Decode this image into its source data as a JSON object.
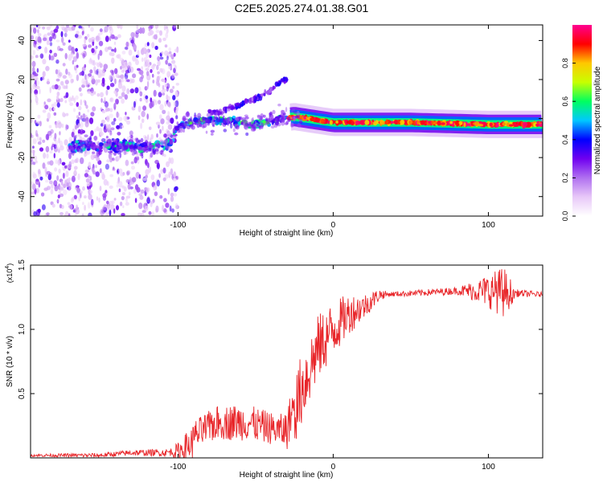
{
  "title": "C2E5.2025.274.01.38.G01",
  "chart_data": [
    {
      "type": "heatmap",
      "name": "spectrogram",
      "xlabel": "Height of straight line (km)",
      "ylabel": "Frequency (Hz)",
      "xlim": [
        -195,
        135
      ],
      "ylim": [
        -50,
        48
      ],
      "xticks": [
        -100,
        0,
        100
      ],
      "xtick_labels": [
        "-100",
        "0",
        "100"
      ],
      "yticks": [
        40,
        20,
        0,
        -20,
        -40
      ],
      "ytick_labels": [
        "40",
        "20",
        "0",
        "-20",
        "-40"
      ],
      "ridge": [
        {
          "x": -160,
          "f": -14
        },
        {
          "x": -140,
          "f": -14
        },
        {
          "x": -120,
          "f": -15
        },
        {
          "x": -105,
          "f": -12
        },
        {
          "x": -100,
          "f": -4
        },
        {
          "x": -90,
          "f": -1
        },
        {
          "x": -70,
          "f": -1
        },
        {
          "x": -50,
          "f": -3
        },
        {
          "x": -35,
          "f": 0
        },
        {
          "x": -25,
          "f": 1
        },
        {
          "x": 0,
          "f": -2
        },
        {
          "x": 50,
          "f": -2
        },
        {
          "x": 100,
          "f": -3
        },
        {
          "x": 135,
          "f": -3
        }
      ],
      "upper_branch": [
        {
          "x": -75,
          "f": 3
        },
        {
          "x": -60,
          "f": 7
        },
        {
          "x": -45,
          "f": 12
        },
        {
          "x": -32,
          "f": 20
        }
      ],
      "noise_region_end_km": -100,
      "colorbar": {
        "label": "Normalized spectral amplitude",
        "ticks": [
          0.0,
          0.2,
          0.4,
          0.6,
          0.8
        ],
        "tick_labels": [
          "0.0",
          "0.2",
          "0.4",
          "0.6",
          "0.8"
        ],
        "range": [
          0,
          1
        ],
        "colors": [
          "#ffffff",
          "#e8c8f8",
          "#b070f0",
          "#7000f0",
          "#0000ff",
          "#00c8ff",
          "#00ff60",
          "#c8ff00",
          "#ffc800",
          "#ff0000",
          "#ff0090"
        ]
      }
    },
    {
      "type": "line",
      "name": "snr",
      "xlabel": "Height of straight line (km)",
      "ylabel": "SNR (10 * v/v)",
      "y_multiplier": "(x10",
      "y_multiplier_exp": "4",
      "y_multiplier_close": ")",
      "xlim": [
        -195,
        135
      ],
      "ylim": [
        0,
        1.5
      ],
      "xticks": [
        -100,
        0,
        100
      ],
      "xtick_labels": [
        "-100",
        "0",
        "100"
      ],
      "yticks": [
        0.5,
        1.0,
        1.5
      ],
      "ytick_labels": [
        "0.5",
        "1.0",
        "1.5"
      ],
      "color": "#e8262a",
      "trend": [
        {
          "x": -195,
          "y": 0.02
        },
        {
          "x": -150,
          "y": 0.02
        },
        {
          "x": -130,
          "y": 0.04
        },
        {
          "x": -110,
          "y": 0.04
        },
        {
          "x": -100,
          "y": 0.05
        },
        {
          "x": -90,
          "y": 0.12
        },
        {
          "x": -75,
          "y": 0.22
        },
        {
          "x": -55,
          "y": 0.22
        },
        {
          "x": -40,
          "y": 0.18
        },
        {
          "x": -30,
          "y": 0.15
        },
        {
          "x": -20,
          "y": 0.55
        },
        {
          "x": -10,
          "y": 0.85
        },
        {
          "x": 0,
          "y": 1.0
        },
        {
          "x": 10,
          "y": 1.12
        },
        {
          "x": 20,
          "y": 1.18
        },
        {
          "x": 30,
          "y": 1.27
        },
        {
          "x": 50,
          "y": 1.28
        },
        {
          "x": 80,
          "y": 1.3
        },
        {
          "x": 100,
          "y": 1.3
        },
        {
          "x": 120,
          "y": 1.28
        },
        {
          "x": 135,
          "y": 1.27
        }
      ],
      "noise_amplitude": [
        {
          "x": -195,
          "a": 0.01
        },
        {
          "x": -140,
          "a": 0.02
        },
        {
          "x": -105,
          "a": 0.03
        },
        {
          "x": -90,
          "a": 0.15
        },
        {
          "x": -60,
          "a": 0.18
        },
        {
          "x": -35,
          "a": 0.15
        },
        {
          "x": -20,
          "a": 0.3
        },
        {
          "x": 0,
          "a": 0.22
        },
        {
          "x": 20,
          "a": 0.1
        },
        {
          "x": 35,
          "a": 0.02
        },
        {
          "x": 80,
          "a": 0.03
        },
        {
          "x": 95,
          "a": 0.1
        },
        {
          "x": 110,
          "a": 0.2
        },
        {
          "x": 118,
          "a": 0.03
        },
        {
          "x": 135,
          "a": 0.02
        }
      ]
    }
  ]
}
